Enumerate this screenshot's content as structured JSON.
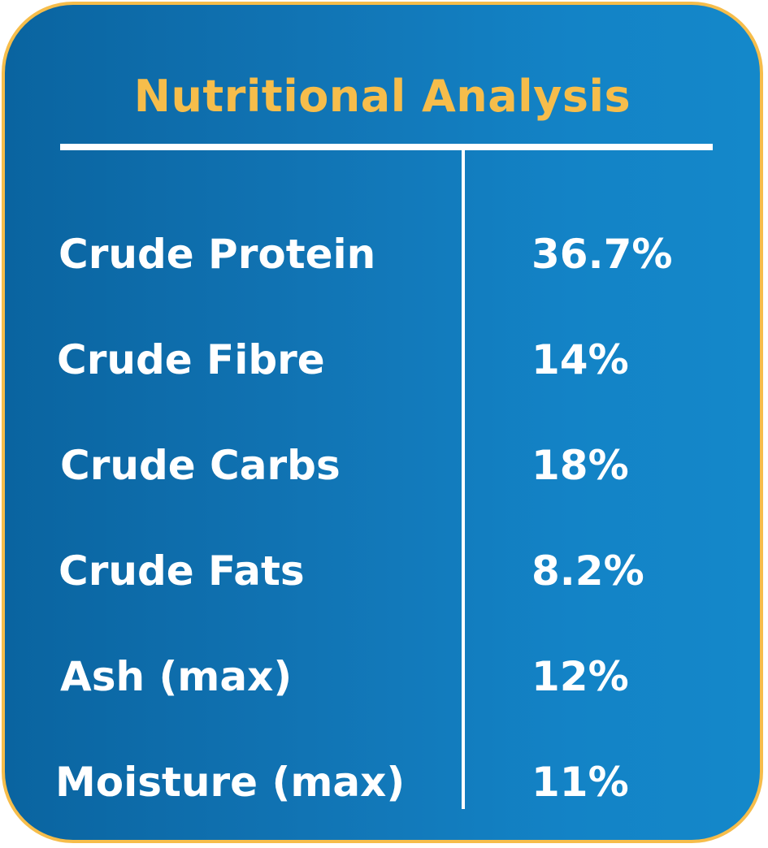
{
  "title": "Nutritional Analysis",
  "rows": [
    {
      "label": "Crude Protein",
      "value": "36.7%"
    },
    {
      "label": "Crude Fibre",
      "value": "14%"
    },
    {
      "label": "Crude Carbs",
      "value": "18%"
    },
    {
      "label": "Crude Fats",
      "value": "8.2%"
    },
    {
      "label": "Ash (max)",
      "value": "12%"
    },
    {
      "label": "Moisture (max)",
      "value": "11%"
    }
  ],
  "colors": {
    "accent": "#f6bd4b",
    "background_dark": "#0a64a0",
    "background_light": "#1488ca",
    "text": "#ffffff"
  }
}
